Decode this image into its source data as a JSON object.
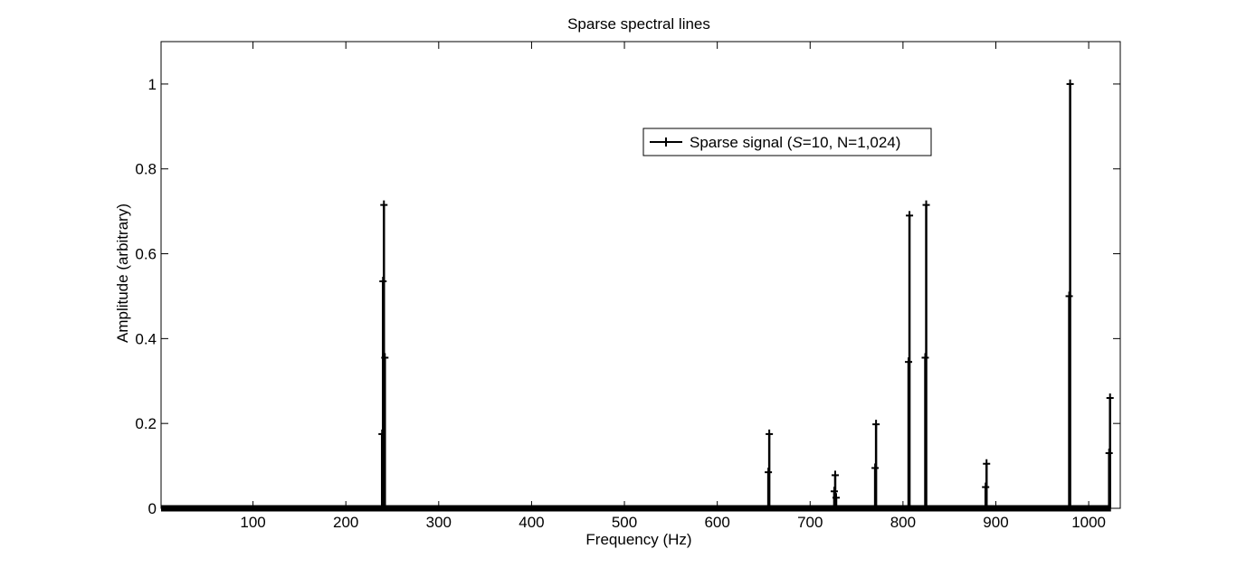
{
  "chart_data": {
    "type": "line",
    "title": "Sparse spectral lines",
    "xlabel": "Frequency (Hz)",
    "ylabel": "Amplitude (arbitrary)",
    "xlim": [
      1,
      1034
    ],
    "ylim": [
      0,
      1.1
    ],
    "xticks": [
      100,
      200,
      300,
      400,
      500,
      600,
      700,
      800,
      900,
      1000
    ],
    "yticks": [
      0,
      0.2,
      0.4,
      0.6,
      0.8,
      1
    ],
    "ytick_labels": [
      "0",
      "0.2",
      "0.4",
      "0.6",
      "0.8",
      "1"
    ],
    "grid": false,
    "legend_position": "top-right",
    "series": [
      {
        "name": "Sparse signal (S=10, N=1,024)",
        "name_plain": "Sparse signal (",
        "name_italic": "S",
        "name_rest": "=10, N=1,024)",
        "color": "#000000",
        "marker": "+",
        "baseline_range": [
          1,
          1024
        ],
        "points": [
          {
            "x": 239,
            "y": 0.175
          },
          {
            "x": 240,
            "y": 0.535
          },
          {
            "x": 241,
            "y": 0.715
          },
          {
            "x": 242,
            "y": 0.355
          },
          {
            "x": 655,
            "y": 0.085
          },
          {
            "x": 656,
            "y": 0.175
          },
          {
            "x": 726,
            "y": 0.04
          },
          {
            "x": 727,
            "y": 0.078
          },
          {
            "x": 728,
            "y": 0.025
          },
          {
            "x": 770,
            "y": 0.095
          },
          {
            "x": 771,
            "y": 0.198
          },
          {
            "x": 806,
            "y": 0.345
          },
          {
            "x": 807,
            "y": 0.69
          },
          {
            "x": 824,
            "y": 0.355
          },
          {
            "x": 825,
            "y": 0.715
          },
          {
            "x": 889,
            "y": 0.05
          },
          {
            "x": 890,
            "y": 0.105
          },
          {
            "x": 979,
            "y": 0.5
          },
          {
            "x": 980,
            "y": 1.0
          },
          {
            "x": 1022,
            "y": 0.13
          },
          {
            "x": 1023,
            "y": 0.26
          }
        ]
      }
    ]
  }
}
